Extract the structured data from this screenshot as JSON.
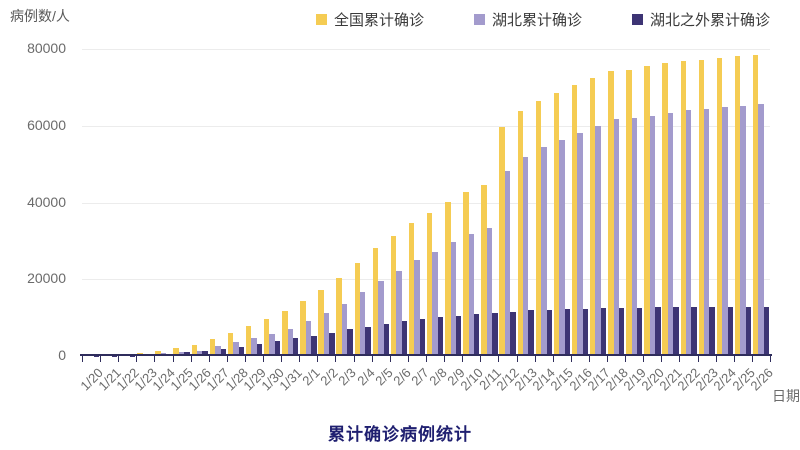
{
  "chart_data": {
    "type": "bar",
    "title": "累计确诊病例统计",
    "ylabel": "病例数/人",
    "xlabel": "日期",
    "ylim": [
      0,
      80000
    ],
    "yticks": [
      0,
      20000,
      40000,
      60000,
      80000
    ],
    "grid": true,
    "legend_position": "top",
    "categories": [
      "1/20",
      "1/21",
      "1/22",
      "1/23",
      "1/24",
      "1/25",
      "1/26",
      "1/27",
      "1/28",
      "1/29",
      "1/30",
      "1/31",
      "2/1",
      "2/2",
      "2/3",
      "2/4",
      "2/5",
      "2/6",
      "2/7",
      "2/8",
      "2/9",
      "2/10",
      "2/11",
      "2/12",
      "2/13",
      "2/14",
      "2/15",
      "2/16",
      "2/17",
      "2/18",
      "2/19",
      "2/20",
      "2/21",
      "2/22",
      "2/23",
      "2/24",
      "2/25",
      "2/26"
    ],
    "series": [
      {
        "id": "national",
        "name": "全国累计确诊",
        "color": "#F5CC53",
        "values": [
          291,
          440,
          571,
          830,
          1287,
          1975,
          2744,
          4515,
          5974,
          7711,
          9692,
          11791,
          14380,
          17205,
          20438,
          24324,
          28018,
          31161,
          34546,
          37198,
          40171,
          42638,
          44653,
          59804,
          63851,
          66492,
          68500,
          70548,
          72436,
          74185,
          74576,
          75465,
          76288,
          76936,
          77150,
          77658,
          78064,
          78497
        ]
      },
      {
        "id": "hubei",
        "name": "湖北累计确诊",
        "color": "#A39BCD",
        "values": [
          270,
          375,
          444,
          549,
          729,
          1052,
          1423,
          2714,
          3554,
          4586,
          5806,
          7153,
          9074,
          11177,
          13522,
          16678,
          19665,
          22112,
          24953,
          27100,
          29631,
          31728,
          33366,
          48206,
          51986,
          54406,
          56249,
          58182,
          59989,
          61682,
          62031,
          62662,
          63454,
          64084,
          64287,
          64786,
          65187,
          65596
        ]
      },
      {
        "id": "outside_hubei",
        "name": "湖北之外累计确诊",
        "color": "#3D3474",
        "values": [
          21,
          65,
          127,
          281,
          558,
          923,
          1321,
          1801,
          2420,
          3125,
          3886,
          4638,
          5306,
          6028,
          6916,
          7646,
          8353,
          9049,
          9593,
          10098,
          10540,
          10910,
          11287,
          11598,
          11865,
          12086,
          12251,
          12366,
          12447,
          12503,
          12545,
          12803,
          12834,
          12852,
          12863,
          12872,
          12877,
          12901
        ]
      }
    ],
    "colors": {
      "axis": "#2F2D5C",
      "gridline": "#ECECEC",
      "tick_label": "#6B6B6B",
      "legend_text": "#3A3A3A",
      "title": "#1F1F70"
    }
  }
}
